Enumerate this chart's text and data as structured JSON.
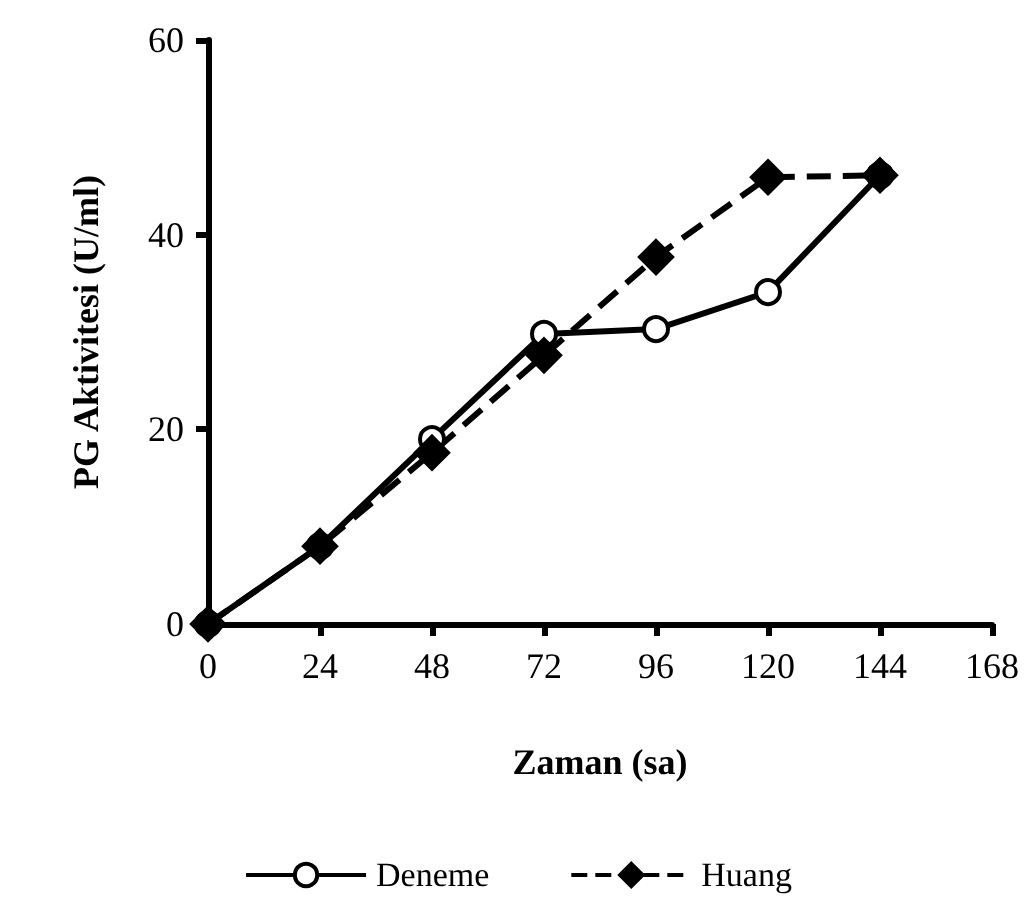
{
  "chart_data": {
    "type": "line",
    "xlabel": "Zaman (sa)",
    "ylabel": "PG Aktivitesi (U/ml)",
    "x": [
      0,
      24,
      48,
      72,
      96,
      120,
      144
    ],
    "series": [
      {
        "name": "Deneme",
        "color": "#000000",
        "marker": "circle",
        "line_style": "solid",
        "values": [
          0,
          8,
          19,
          29.8,
          30.3,
          34.1,
          46.1
        ]
      },
      {
        "name": "Huang",
        "color": "#000000",
        "marker": "diamond",
        "line_style": "dashed",
        "values": [
          0,
          8,
          17.6,
          27.6,
          37.7,
          45.9,
          46.1
        ]
      }
    ],
    "xlim": [
      0,
      168
    ],
    "xticks": [
      0,
      24,
      48,
      72,
      96,
      120,
      144,
      168
    ],
    "ylim": [
      0,
      60
    ],
    "yticks": [
      0,
      20,
      40,
      60
    ],
    "grid": false,
    "legend": "bottom"
  }
}
